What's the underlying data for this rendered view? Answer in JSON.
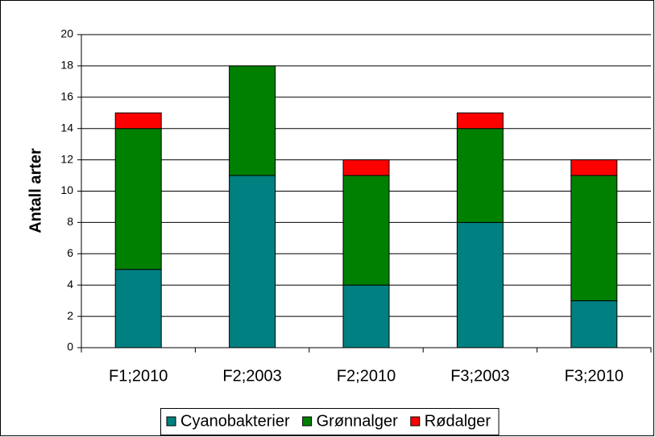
{
  "chart_data": {
    "type": "stacked_bar",
    "y_label": "Antall arter",
    "categories": [
      "F1;2010",
      "F2;2003",
      "F2;2010",
      "F3;2003",
      "F3;2010"
    ],
    "series": [
      {
        "name": "Cyanobakterier",
        "color": "#008080",
        "values": [
          5,
          11,
          4,
          8,
          3
        ]
      },
      {
        "name": "Grønnalger",
        "color": "#008000",
        "values": [
          9,
          7,
          7,
          6,
          8
        ]
      },
      {
        "name": "Rødalger",
        "color": "#ff0000",
        "values": [
          1,
          0,
          1,
          1,
          1
        ]
      }
    ],
    "ylim": [
      0,
      20
    ],
    "yticks": [
      0,
      2,
      4,
      6,
      8,
      10,
      12,
      14,
      16,
      18,
      20
    ],
    "grid": true,
    "legend": "bottom"
  }
}
